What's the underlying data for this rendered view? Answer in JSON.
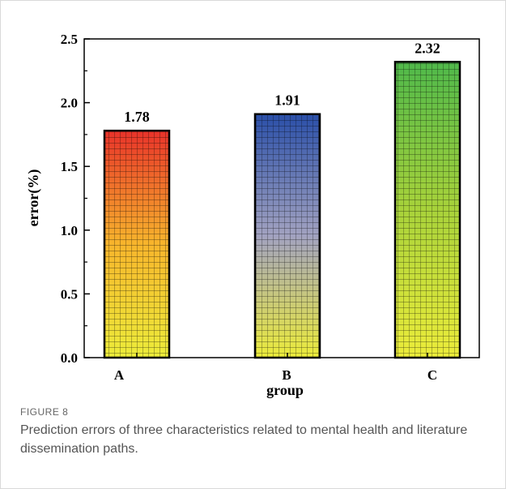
{
  "figure": {
    "label": "FIGURE 8",
    "caption": "Prediction errors of three characteristics related to mental health and literature dissemination paths."
  },
  "chart_data": {
    "type": "bar",
    "categories": [
      "A",
      "B",
      "C"
    ],
    "values": [
      1.78,
      1.91,
      2.32
    ],
    "data_labels": [
      "1.78",
      "1.91",
      "2.32"
    ],
    "xlabel": "group",
    "ylabel": "error(%)",
    "ylim": [
      0,
      2.5
    ],
    "yticks": [
      0.0,
      0.5,
      1.0,
      1.5,
      2.0,
      2.5
    ],
    "ytick_labels": [
      "0.0",
      "0.5",
      "1.0",
      "1.5",
      "2.0",
      "2.5"
    ],
    "grid": false,
    "legend": "none",
    "bar_fills": [
      {
        "top": "#e8322a",
        "middle": "#f7b52c",
        "bottom": "#ecec3a"
      },
      {
        "top": "#2a4fa8",
        "middle": "#a2a2c0",
        "bottom": "#ecec3a"
      },
      {
        "top": "#4fb84a",
        "middle": "#a8d23a",
        "bottom": "#ecec3a"
      }
    ],
    "bar_edge_color": "#000000"
  }
}
